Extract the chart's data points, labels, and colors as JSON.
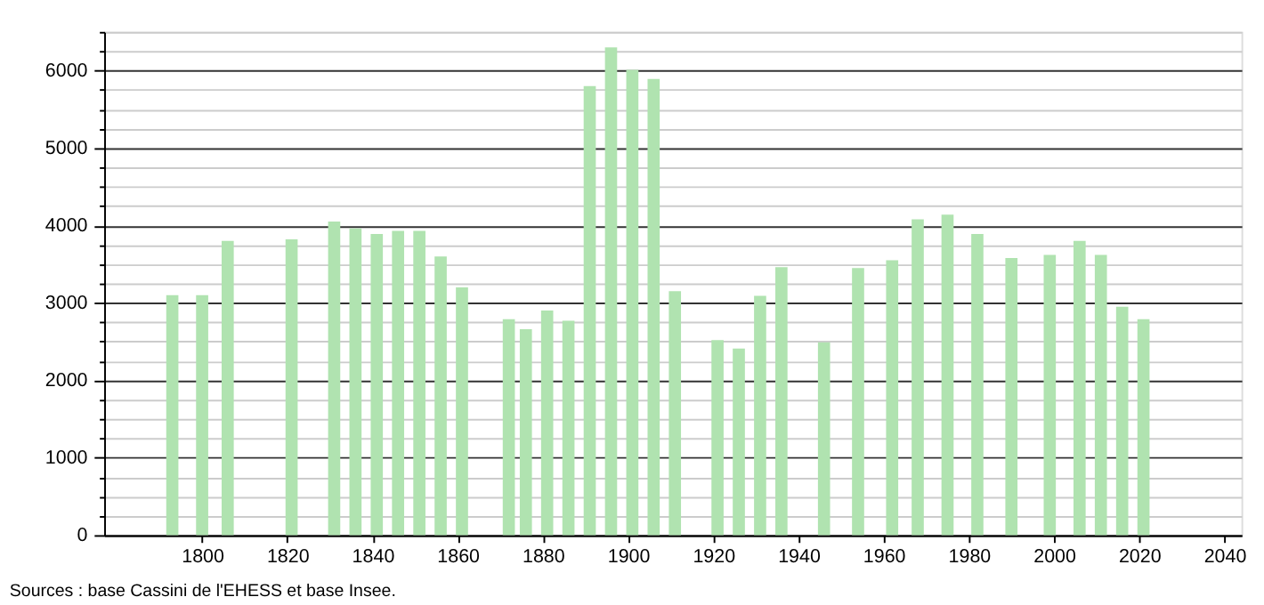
{
  "chart_data": {
    "type": "bar",
    "x": [
      1793,
      1800,
      1806,
      1821,
      1831,
      1836,
      1841,
      1846,
      1851,
      1856,
      1861,
      1872,
      1876,
      1881,
      1886,
      1891,
      1896,
      1901,
      1906,
      1911,
      1921,
      1926,
      1931,
      1936,
      1946,
      1954,
      1962,
      1968,
      1975,
      1982,
      1990,
      1999,
      2006,
      2011,
      2016,
      2021
    ],
    "series": [
      {
        "color": "#b0e3b0",
        "values": [
          3100,
          3100,
          3800,
          3820,
          4050,
          3960,
          3890,
          3930,
          3930,
          3600,
          3200,
          2790,
          2660,
          2900,
          2770,
          5800,
          6300,
          6010,
          5890,
          3150,
          2520,
          2410,
          3090,
          3460,
          2490,
          3450,
          3550,
          4080,
          4140,
          3890,
          3580,
          3620,
          3800,
          3620,
          2950,
          2790
        ]
      }
    ],
    "xlim": [
      1777,
      2044
    ],
    "xticks": [
      1800,
      1820,
      1840,
      1860,
      1880,
      1900,
      1920,
      1940,
      1960,
      1980,
      2000,
      2020,
      2040
    ],
    "ylim": [
      0,
      6500
    ],
    "yticks": [
      0,
      {
        "value": 250,
        "label": null
      },
      {
        "value": 500,
        "label": null
      },
      {
        "value": 750,
        "label": null
      },
      1000,
      {
        "value": 1250,
        "label": null
      },
      {
        "value": 1500,
        "label": null
      },
      {
        "value": 1750,
        "label": null
      },
      2000,
      {
        "value": 2250,
        "label": null
      },
      {
        "value": 2500,
        "label": null
      },
      {
        "value": 2750,
        "label": null
      },
      3000,
      {
        "value": 3250,
        "label": null
      },
      {
        "value": 3500,
        "label": null
      },
      {
        "value": 3750,
        "label": null
      },
      4000,
      {
        "value": 4250,
        "label": null
      },
      {
        "value": 4500,
        "label": null
      },
      {
        "value": 4750,
        "label": null
      },
      5000,
      {
        "value": 5250,
        "label": null
      },
      {
        "value": 5500,
        "label": null
      },
      {
        "value": 5750,
        "label": null
      },
      6000,
      {
        "value": 6250,
        "label": null
      },
      {
        "value": 6500,
        "label": null
      }
    ],
    "grid": "y",
    "legend": false,
    "annotations": [
      "Sources : base Cassini de l'EHESS et base Insee."
    ]
  }
}
